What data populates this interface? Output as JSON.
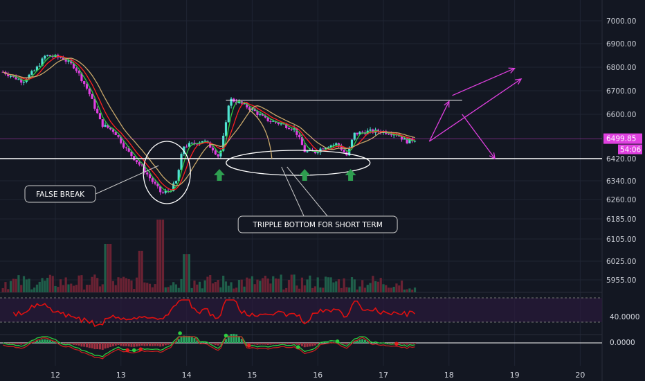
{
  "chart_data": {
    "type": "candlestick",
    "symbol_pair": "",
    "title": "",
    "x_ticks": [
      "12",
      "13",
      "14",
      "15",
      "16",
      "17",
      "18",
      "19",
      "20"
    ],
    "y_ticks": [
      "7000.00",
      "6900.00",
      "6800.00",
      "6700.00",
      "6600.00",
      "6420.00",
      "6340.00",
      "6260.00",
      "6185.00",
      "6105.00",
      "6025.00",
      "5955.00"
    ],
    "y_range_note": "",
    "price_label": "6499.85",
    "countdown_label": "54:06",
    "support_level": 6420,
    "resistance_level": 6660,
    "price_series": [
      {
        "t": 11.2,
        "v": 6780
      },
      {
        "t": 11.5,
        "v": 6740
      },
      {
        "t": 11.7,
        "v": 6790
      },
      {
        "t": 11.85,
        "v": 6850
      },
      {
        "t": 12.1,
        "v": 6840
      },
      {
        "t": 12.3,
        "v": 6800
      },
      {
        "t": 12.5,
        "v": 6700
      },
      {
        "t": 12.7,
        "v": 6560
      },
      {
        "t": 12.9,
        "v": 6530
      },
      {
        "t": 13.1,
        "v": 6450
      },
      {
        "t": 13.35,
        "v": 6380
      },
      {
        "t": 13.5,
        "v": 6330
      },
      {
        "t": 13.62,
        "v": 6285
      },
      {
        "t": 13.75,
        "v": 6300
      },
      {
        "t": 13.85,
        "v": 6340
      },
      {
        "t": 13.95,
        "v": 6470
      },
      {
        "t": 14.1,
        "v": 6480
      },
      {
        "t": 14.25,
        "v": 6495
      },
      {
        "t": 14.4,
        "v": 6460
      },
      {
        "t": 14.5,
        "v": 6425
      },
      {
        "t": 14.6,
        "v": 6560
      },
      {
        "t": 14.65,
        "v": 6665
      },
      {
        "t": 14.8,
        "v": 6650
      },
      {
        "t": 15.0,
        "v": 6620
      },
      {
        "t": 15.2,
        "v": 6580
      },
      {
        "t": 15.45,
        "v": 6560
      },
      {
        "t": 15.65,
        "v": 6540
      },
      {
        "t": 15.8,
        "v": 6450
      },
      {
        "t": 15.95,
        "v": 6445
      },
      {
        "t": 16.1,
        "v": 6470
      },
      {
        "t": 16.3,
        "v": 6480
      },
      {
        "t": 16.45,
        "v": 6430
      },
      {
        "t": 16.55,
        "v": 6520
      },
      {
        "t": 16.75,
        "v": 6530
      },
      {
        "t": 17.0,
        "v": 6530
      },
      {
        "t": 17.2,
        "v": 6520
      },
      {
        "t": 17.35,
        "v": 6490
      },
      {
        "t": 17.5,
        "v": 6500
      }
    ],
    "annotations": [
      {
        "type": "callout",
        "label": "FALSE BREAK",
        "target_t": 13.7,
        "target_v": 6310
      },
      {
        "type": "callout",
        "label": "TRIPPLE BOTTOM FOR SHORT TERM",
        "target_t": 15.6,
        "target_v": 6405
      },
      {
        "type": "ellipse",
        "note": "false-break-circle",
        "t": 13.7,
        "v": 6370
      },
      {
        "type": "ellipse",
        "note": "tripple-bottom-ellipse",
        "t": 15.7,
        "v": 6405
      },
      {
        "type": "up-arrow",
        "t": 14.5,
        "v": 6360
      },
      {
        "type": "up-arrow",
        "t": 15.8,
        "v": 6360
      },
      {
        "type": "up-arrow",
        "t": 16.5,
        "v": 6360
      }
    ],
    "projection_arrows": [
      {
        "from_t": 17.7,
        "from_v": 6490,
        "to_t": 18.0,
        "to_v": 6655
      },
      {
        "from_t": 18.05,
        "from_v": 6680,
        "to_t": 19.0,
        "to_v": 6795
      },
      {
        "from_t": 18.2,
        "from_v": 6600,
        "to_t": 18.7,
        "to_v": 6420
      },
      {
        "from_t": 17.7,
        "from_v": 6490,
        "to_t": 19.1,
        "to_v": 6750
      }
    ],
    "rsi": {
      "label": "40.0000",
      "upper": 70,
      "lower": 30
    },
    "macd": {
      "label": "0.0000"
    }
  }
}
